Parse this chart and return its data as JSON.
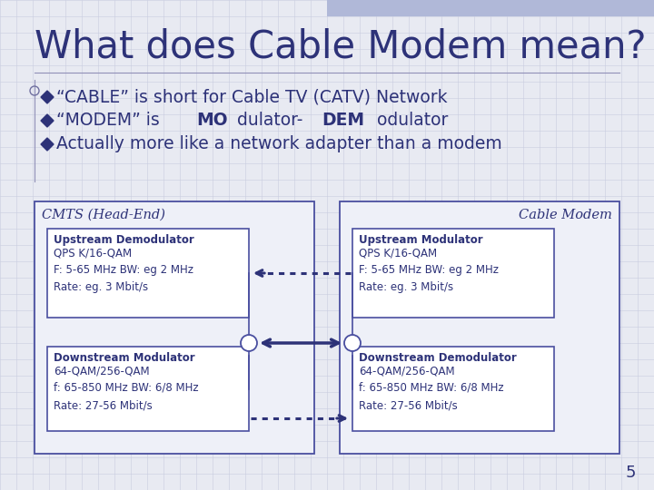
{
  "title": "What does Cable Modem mean?",
  "bg_color": "#e8eaf2",
  "title_color": "#2d3278",
  "text_color": "#2d3278",
  "box_border_color": "#4a4fa0",
  "bullet_color": "#2d3278",
  "grid_color": "#c8cce0",
  "header_bar_color": "#b0b8d8",
  "bullets": [
    "“CABLE” is short for Cable TV (CATV) Network",
    "“MODEM” is MOdulator-DEModulator",
    "Actually more like a network adapter than a modem"
  ],
  "left_label": "CMTS (Head-End)",
  "right_label": "Cable Modem",
  "upstream_left_title": "Upstream Demodulator",
  "upstream_left_body": "QPS K/16-QAM\nF: 5-65 MHz BW: eg 2 MHz\nRate: eg. 3 Mbit/s",
  "upstream_right_title": "Upstream Modulator",
  "upstream_right_body": "QPS K/16-QAM\nF: 5-65 MHz BW: eg 2 MHz\nRate: eg. 3 Mbit/s",
  "downstream_left_title": "Downstream Modulator",
  "downstream_left_body": "64-QAM/256-QAM\nf: 65-850 MHz BW: 6/8 MHz\nRate: 27-56 Mbit/s",
  "downstream_right_title": "Downstream Demodulator",
  "downstream_right_body": "64-QAM/256-QAM\nf: 65-850 MHz BW: 6/8 MHz\nRate: 27-56 Mbit/s",
  "page_number": "5",
  "modem_parts": [
    [
      "“MODEM” is ",
      false
    ],
    [
      "MO",
      true
    ],
    [
      "dulator-",
      false
    ],
    [
      "DEM",
      true
    ],
    [
      "odulator",
      false
    ]
  ]
}
